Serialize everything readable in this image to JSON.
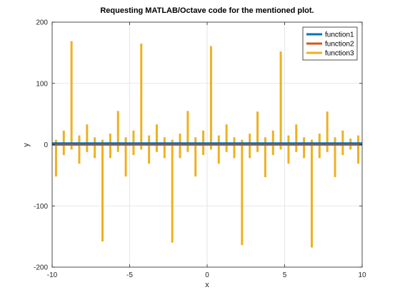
{
  "chart_data": {
    "type": "line",
    "title": "Requesting MATLAB/Octave code for the mentioned plot.",
    "xlabel": "x",
    "ylabel": "y",
    "xlim": [
      -10,
      10
    ],
    "ylim": [
      -200,
      200
    ],
    "xticks": [
      -10,
      -5,
      0,
      5,
      10
    ],
    "yticks": [
      -200,
      -100,
      0,
      100,
      200
    ],
    "xtick_labels": [
      "-10",
      "-5",
      "0",
      "5",
      "10"
    ],
    "ytick_labels": [
      "-200",
      "-100",
      "0",
      "100",
      "200"
    ],
    "grid": true,
    "legend_position": "top-right",
    "series": [
      {
        "name": "function1",
        "color": "#0072BD",
        "x": [
          -10,
          10
        ],
        "y": [
          2,
          2
        ]
      },
      {
        "name": "function2",
        "color": "#D95319",
        "x": [
          -10,
          10
        ],
        "y": [
          0,
          0
        ]
      },
      {
        "name": "function3",
        "color": "#EDB120",
        "x": [
          -9.75,
          -9.25,
          -8.75,
          -8.25,
          -7.75,
          -7.25,
          -6.75,
          -6.25,
          -5.75,
          -5.25,
          -4.75,
          -4.25,
          -3.75,
          -3.25,
          -2.75,
          -2.25,
          -1.75,
          -1.25,
          -0.75,
          -0.25,
          0.25,
          0.75,
          1.25,
          1.75,
          2.25,
          2.75,
          3.25,
          3.75,
          4.25,
          4.75,
          5.25,
          5.75,
          6.25,
          6.75,
          7.25,
          7.75,
          8.25,
          8.75,
          9.25,
          9.75
        ],
        "y": [
          [
            -52,
            8
          ],
          [
            -17,
            23
          ],
          [
            -8,
            169
          ],
          [
            -31,
            15
          ],
          [
            -12,
            33
          ],
          [
            -22,
            12
          ],
          [
            -158,
            8
          ],
          [
            -22,
            18
          ],
          [
            -12,
            55
          ],
          [
            -52,
            12
          ],
          [
            -17,
            23
          ],
          [
            -8,
            165
          ],
          [
            -31,
            15
          ],
          [
            -12,
            33
          ],
          [
            -22,
            12
          ],
          [
            -160,
            8
          ],
          [
            -22,
            18
          ],
          [
            -12,
            55
          ],
          [
            -52,
            12
          ],
          [
            -17,
            23
          ],
          [
            -8,
            161
          ],
          [
            -31,
            15
          ],
          [
            -12,
            33
          ],
          [
            -22,
            12
          ],
          [
            -164,
            8
          ],
          [
            -22,
            18
          ],
          [
            -12,
            54
          ],
          [
            -53,
            12
          ],
          [
            -17,
            23
          ],
          [
            -8,
            152
          ],
          [
            -31,
            15
          ],
          [
            -12,
            33
          ],
          [
            -22,
            12
          ],
          [
            -168,
            8
          ],
          [
            -22,
            18
          ],
          [
            -12,
            54
          ],
          [
            -53,
            12
          ],
          [
            -17,
            23
          ],
          [
            -8,
            10
          ],
          [
            -31,
            15
          ]
        ]
      }
    ]
  }
}
